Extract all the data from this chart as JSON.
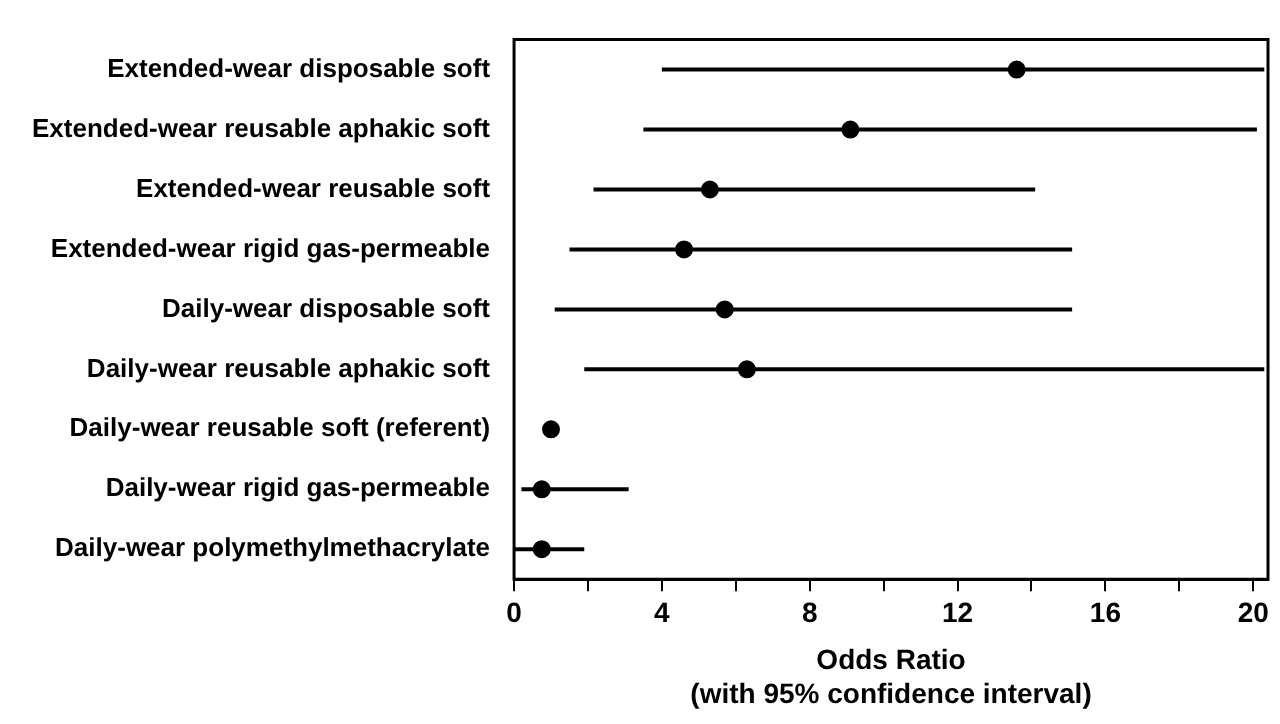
{
  "chart_data": {
    "type": "scatter",
    "orientation": "horizontal",
    "categories": [
      "Extended-wear disposable soft",
      "Extended-wear reusable aphakic soft",
      "Extended-wear reusable soft",
      "Extended-wear rigid gas-permeable",
      "Daily-wear disposable soft",
      "Daily-wear reusable aphakic soft",
      "Daily-wear reusable soft (referent)",
      "Daily-wear rigid gas-permeable",
      "Daily-wear polymethylmethacrylate"
    ],
    "values": [
      13.6,
      9.1,
      5.3,
      4.6,
      5.7,
      6.3,
      1.0,
      0.75,
      0.75
    ],
    "errors": [
      [
        4.0,
        20.3
      ],
      [
        3.5,
        20.1
      ],
      [
        2.15,
        14.1
      ],
      [
        1.5,
        15.1
      ],
      [
        1.1,
        15.1
      ],
      [
        1.9,
        20.3
      ],
      null,
      [
        0.2,
        3.1
      ],
      [
        0,
        1.9
      ]
    ],
    "color": "#000000",
    "marker": "circle",
    "grid": false,
    "legend": false,
    "xlabel": "Odds Ratio\n(with 95% confidence interval)",
    "xlim": [
      0,
      20.4
    ],
    "xticks": [
      0,
      {
        "value": 2,
        "label": null
      },
      4,
      {
        "value": 6,
        "label": null
      },
      8,
      {
        "value": 10,
        "label": null
      },
      12,
      {
        "value": 14,
        "label": null
      },
      16,
      {
        "value": 18,
        "label": null
      },
      20
    ]
  }
}
